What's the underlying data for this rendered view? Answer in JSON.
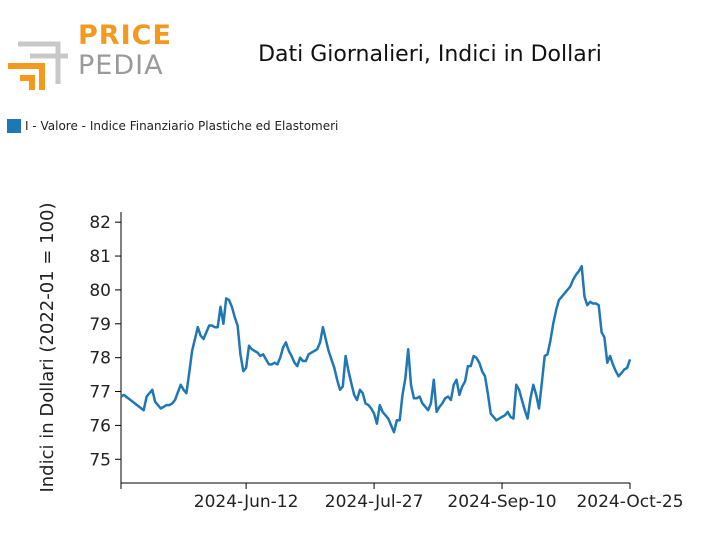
{
  "logo": {
    "line1": "PRICE",
    "line2": "PEDIA"
  },
  "colors": {
    "series": "#1f77b4",
    "logo_orange": "#f39a1e",
    "logo_grey": "#9a9a9a"
  },
  "chart_data": {
    "type": "line",
    "title": "Dati Giornalieri, Indici in Dollari",
    "ylabel": "Indici in Dollari (2022-01 = 100)",
    "xlabel": "",
    "ylim": [
      74.3,
      82.3
    ],
    "yticks": [
      75,
      76,
      77,
      78,
      79,
      80,
      81,
      82
    ],
    "xlim": [
      "2024-04-29",
      "2024-10-25"
    ],
    "xticks": [
      "2024-04-29",
      "2024-06-12",
      "2024-07-27",
      "2024-09-10",
      "2024-10-25"
    ],
    "xtick_labels": [
      "",
      "2024-Jun-12",
      "2024-Jul-27",
      "2024-Sep-10",
      "2024-Oct-25"
    ],
    "legend": "top-left",
    "grid": false,
    "series": [
      {
        "name": "I - Valore - Indice Finanziario Plastiche ed Elastomeri",
        "x": [
          "2024-04-29",
          "2024-04-30",
          "2024-05-07",
          "2024-05-08",
          "2024-05-10",
          "2024-05-11",
          "2024-05-13",
          "2024-05-14",
          "2024-05-15",
          "2024-05-16",
          "2024-05-17",
          "2024-05-18",
          "2024-05-20",
          "2024-05-21",
          "2024-05-22",
          "2024-05-23",
          "2024-05-24",
          "2024-05-26",
          "2024-05-27",
          "2024-05-28",
          "2024-05-30",
          "2024-05-31",
          "2024-06-01",
          "2024-06-02",
          "2024-06-03",
          "2024-06-04",
          "2024-06-05",
          "2024-06-06",
          "2024-06-07",
          "2024-06-08",
          "2024-06-09",
          "2024-06-10",
          "2024-06-11",
          "2024-06-12",
          "2024-06-13",
          "2024-06-14",
          "2024-06-15",
          "2024-06-16",
          "2024-06-17",
          "2024-06-18",
          "2024-06-19",
          "2024-06-20",
          "2024-06-21",
          "2024-06-22",
          "2024-06-23",
          "2024-06-24",
          "2024-06-25",
          "2024-06-26",
          "2024-06-27",
          "2024-06-28",
          "2024-06-29",
          "2024-06-30",
          "2024-07-01",
          "2024-07-02",
          "2024-07-03",
          "2024-07-04",
          "2024-07-05",
          "2024-07-06",
          "2024-07-07",
          "2024-07-08",
          "2024-07-09",
          "2024-07-10",
          "2024-07-11",
          "2024-07-12",
          "2024-07-13",
          "2024-07-14",
          "2024-07-15",
          "2024-07-16",
          "2024-07-17",
          "2024-07-18",
          "2024-07-19",
          "2024-07-20",
          "2024-07-21",
          "2024-07-22",
          "2024-07-23",
          "2024-07-24",
          "2024-07-25",
          "2024-07-26",
          "2024-07-27",
          "2024-07-28",
          "2024-07-29",
          "2024-07-30",
          "2024-07-31",
          "2024-08-01",
          "2024-08-02",
          "2024-08-03",
          "2024-08-04",
          "2024-08-05",
          "2024-08-06",
          "2024-08-07",
          "2024-08-08",
          "2024-08-09",
          "2024-08-10",
          "2024-08-11",
          "2024-08-12",
          "2024-08-13",
          "2024-08-14",
          "2024-08-15",
          "2024-08-16",
          "2024-08-17",
          "2024-08-18",
          "2024-08-19",
          "2024-08-20",
          "2024-08-21",
          "2024-08-22",
          "2024-08-23",
          "2024-08-24",
          "2024-08-25",
          "2024-08-26",
          "2024-08-27",
          "2024-08-28",
          "2024-08-29",
          "2024-08-30",
          "2024-08-31",
          "2024-09-01",
          "2024-09-02",
          "2024-09-03",
          "2024-09-04",
          "2024-09-05",
          "2024-09-06",
          "2024-09-07",
          "2024-09-08",
          "2024-09-09",
          "2024-09-10",
          "2024-09-11",
          "2024-09-12",
          "2024-09-13",
          "2024-09-14",
          "2024-09-15",
          "2024-09-16",
          "2024-09-17",
          "2024-09-18",
          "2024-09-19",
          "2024-09-20",
          "2024-09-21",
          "2024-09-22",
          "2024-09-23",
          "2024-09-24",
          "2024-09-25",
          "2024-09-26",
          "2024-09-27",
          "2024-09-28",
          "2024-09-29",
          "2024-09-30",
          "2024-10-01",
          "2024-10-02",
          "2024-10-03",
          "2024-10-04",
          "2024-10-05",
          "2024-10-06",
          "2024-10-07",
          "2024-10-08",
          "2024-10-09",
          "2024-10-10",
          "2024-10-11",
          "2024-10-12",
          "2024-10-13",
          "2024-10-14",
          "2024-10-15",
          "2024-10-16",
          "2024-10-17",
          "2024-10-18",
          "2024-10-19",
          "2024-10-20",
          "2024-10-21",
          "2024-10-22",
          "2024-10-23",
          "2024-10-24",
          "2024-10-25"
        ],
        "y": [
          76.85,
          76.9,
          76.45,
          76.85,
          77.05,
          76.7,
          76.5,
          76.55,
          76.6,
          76.6,
          76.65,
          76.75,
          77.2,
          77.05,
          76.95,
          77.55,
          78.2,
          78.9,
          78.65,
          78.55,
          78.95,
          78.95,
          78.9,
          78.9,
          79.5,
          79.0,
          79.75,
          79.7,
          79.5,
          79.2,
          78.95,
          78.1,
          77.6,
          77.7,
          78.35,
          78.25,
          78.2,
          78.15,
          78.05,
          78.1,
          77.95,
          77.8,
          77.8,
          77.85,
          77.8,
          78.0,
          78.3,
          78.45,
          78.2,
          78.05,
          77.85,
          77.75,
          78.0,
          77.9,
          77.9,
          78.1,
          78.15,
          78.2,
          78.25,
          78.45,
          78.9,
          78.55,
          78.2,
          77.95,
          77.7,
          77.35,
          77.05,
          77.15,
          78.05,
          77.6,
          77.25,
          76.9,
          76.75,
          77.05,
          76.95,
          76.65,
          76.6,
          76.5,
          76.35,
          76.05,
          76.6,
          76.4,
          76.3,
          76.2,
          76.0,
          75.8,
          76.15,
          76.15,
          76.9,
          77.4,
          78.25,
          77.2,
          76.8,
          76.8,
          76.85,
          76.65,
          76.55,
          76.45,
          76.65,
          77.35,
          76.4,
          76.55,
          76.65,
          76.8,
          76.85,
          76.75,
          77.2,
          77.35,
          76.9,
          77.15,
          77.3,
          77.75,
          77.75,
          78.05,
          78.0,
          77.85,
          77.6,
          77.45,
          76.95,
          76.35,
          76.25,
          76.15,
          76.2,
          76.25,
          76.3,
          76.4,
          76.25,
          76.2,
          77.2,
          77.05,
          76.75,
          76.45,
          76.2,
          76.8,
          77.2,
          76.9,
          76.5,
          77.25,
          78.05,
          78.1,
          78.5,
          79.0,
          79.4,
          79.7,
          79.8,
          79.9,
          80.0,
          80.1,
          80.3,
          80.45,
          80.55,
          80.7,
          79.8,
          79.55,
          79.65,
          79.6,
          79.6,
          79.55,
          78.75,
          78.6,
          77.85,
          78.05,
          77.8,
          77.6,
          77.45,
          77.55,
          77.65,
          77.7,
          77.95
        ]
      }
    ]
  }
}
